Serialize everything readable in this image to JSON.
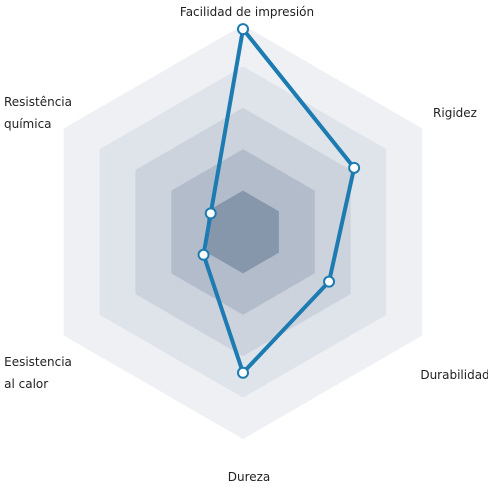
{
  "chart_data": {
    "type": "radar",
    "categories": [
      "Facilidad de impresión",
      "Rigidez",
      "Durabilidad",
      "Dureza",
      "Eesistencia\nal calor",
      "Resistência\nquímica"
    ],
    "values": [
      4.9,
      3.1,
      2.4,
      3.4,
      1.1,
      0.9
    ],
    "rlim": [
      0,
      5
    ],
    "color": "#1c7bb1"
  }
}
